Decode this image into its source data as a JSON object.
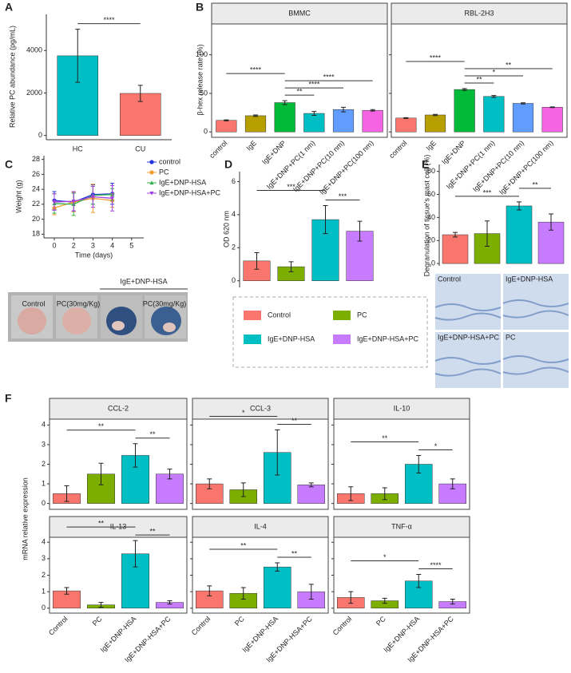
{
  "chart_data": [
    {
      "panel": "A",
      "type": "bar",
      "ylabel": "Relative PC abundance (pg/mL)",
      "categories": [
        "HC",
        "CU"
      ],
      "values": [
        3750,
        1980
      ],
      "errors": [
        1250,
        380
      ],
      "colors": [
        "#00bfc4",
        "#f8766d"
      ],
      "ylim": [
        -200,
        5700
      ],
      "yticks": [
        0,
        2000,
        4000
      ],
      "annotations": [
        {
          "from": 0,
          "to": 1,
          "label": "****"
        }
      ]
    },
    {
      "panel": "B",
      "type": "bar",
      "ylabel": "β-hex release rate (%)",
      "categories": [
        "control",
        "IgE",
        "IgE+DNP",
        "IgE+DNP+PC(1 nm)",
        "IgE+DNP+PC(10 nm)",
        "IgE+DNP+PC(100 nm)"
      ],
      "colors": [
        "#f8766d",
        "#b79f00",
        "#00ba38",
        "#00bfc4",
        "#619cff",
        "#f564e3"
      ],
      "ylim": [
        -7,
        140
      ],
      "yticks": [
        0,
        50,
        100
      ],
      "facets": [
        {
          "title": "BMMC",
          "values": [
            15,
            21,
            38,
            24,
            29,
            28
          ],
          "errors": [
            0.6,
            1,
            2.5,
            2.5,
            3,
            1
          ],
          "annotations": [
            {
              "from": 2,
              "to": 3,
              "label": "**"
            },
            {
              "from": 2,
              "to": 4,
              "label": "****"
            },
            {
              "from": 2,
              "to": 5,
              "label": "****"
            },
            {
              "from": 0,
              "to": 2,
              "label": "****"
            }
          ]
        },
        {
          "title": "RBL-2H3",
          "values": [
            18,
            22,
            55,
            46,
            37,
            32
          ],
          "errors": [
            0.5,
            0.8,
            1.2,
            1.2,
            0.8,
            0.5
          ],
          "annotations": [
            {
              "from": 2,
              "to": 3,
              "label": "**"
            },
            {
              "from": 2,
              "to": 4,
              "label": "*"
            },
            {
              "from": 2,
              "to": 5,
              "label": "**"
            },
            {
              "from": 0,
              "to": 2,
              "label": "****"
            }
          ]
        }
      ]
    },
    {
      "panel": "C",
      "type": "line",
      "xlabel": "Time (days)",
      "ylabel": "Weight (g)",
      "categories": [
        "0",
        "2",
        "3",
        "4",
        "5"
      ],
      "ylim": [
        17.5,
        28.5
      ],
      "yticks": [
        18,
        20,
        22,
        24,
        26,
        28
      ],
      "series": [
        {
          "name": "control",
          "color": "#2233dd",
          "marker": "circle",
          "values": [
            22.5,
            22.3,
            23.3,
            23.4,
            null
          ],
          "errors": [
            1.2,
            1.2,
            1.3,
            1.4,
            null
          ]
        },
        {
          "name": "PC",
          "color": "#f39c32",
          "marker": "circle",
          "values": [
            21.5,
            22.3,
            22.8,
            22.5,
            null
          ],
          "errors": [
            0.9,
            1.3,
            1.9,
            0.9,
            null
          ]
        },
        {
          "name": "IgE+DNP-HSA",
          "color": "#33b24a",
          "marker": "triangle",
          "values": [
            22.1,
            22.0,
            23.2,
            23.3,
            null
          ],
          "errors": [
            1.3,
            1.5,
            1.2,
            0.8,
            null
          ]
        },
        {
          "name": "IgE+DNP-HSA+PC",
          "color": "#a040e0",
          "marker": "triangle-down",
          "values": [
            22.3,
            22.4,
            23.0,
            22.8,
            null
          ],
          "errors": [
            1.1,
            1.3,
            1.4,
            1.7,
            null
          ]
        }
      ],
      "image_labels": {
        "group": "IgE+DNP-HSA",
        "items": [
          "Control",
          "PC(30mg/Kg)",
          "PC(30mg/Kg)"
        ]
      }
    },
    {
      "panel": "D",
      "type": "bar",
      "ylabel": "OD 620 nm",
      "categories": [
        "Control",
        "PC",
        "IgE+DNP-HSA",
        "IgE+DNP-HSA+PC"
      ],
      "values": [
        1.2,
        0.85,
        3.7,
        3.0
      ],
      "errors": [
        0.5,
        0.3,
        0.85,
        0.6
      ],
      "colors": [
        "#f8766d",
        "#7cae00",
        "#00bfc4",
        "#c77cff"
      ],
      "ylim": [
        -0.4,
        6.6
      ],
      "yticks": [
        0,
        2,
        4,
        6
      ],
      "legend": "bottom",
      "annotations": [
        {
          "from": 2,
          "to": 3,
          "label": "***"
        },
        {
          "from": 0,
          "to": 2,
          "label": "***"
        }
      ]
    },
    {
      "panel": "E",
      "type": "bar",
      "ylabel": "Degranulation of tissue's mast cell (%)",
      "values": [
        25,
        26,
        50,
        36
      ],
      "errors": [
        2,
        11,
        3.5,
        7
      ],
      "colors": [
        "#f8766d",
        "#7cae00",
        "#00bfc4",
        "#c77cff"
      ],
      "ylim": [
        -2,
        86
      ],
      "yticks": [
        0,
        20,
        40,
        60,
        80
      ],
      "annotations": [
        {
          "from": 0,
          "to": 2,
          "label": "***"
        },
        {
          "from": 2,
          "to": 3,
          "label": "**"
        }
      ],
      "image_labels": [
        "Control",
        "IgE+DNP-HSA",
        "IgE+DNP-HSA+PC",
        "PC"
      ]
    },
    {
      "panel": "F",
      "type": "bar",
      "ylabel": "mRNA relative expression",
      "categories": [
        "Control",
        "PC",
        "IgE+DNP-HSA",
        "IgE+DNP-HSA+PC"
      ],
      "colors": [
        "#f8766d",
        "#7cae00",
        "#00bfc4",
        "#c77cff"
      ],
      "ylim": [
        -0.3,
        4.3
      ],
      "yticks": [
        0,
        1,
        2,
        3,
        4
      ],
      "facets": [
        {
          "title": "CCL-2",
          "values": [
            0.5,
            1.5,
            2.45,
            1.5
          ],
          "errors": [
            0.4,
            0.55,
            0.6,
            0.25
          ],
          "annotations": [
            {
              "from": 2,
              "to": 3,
              "label": "**"
            },
            {
              "from": 0,
              "to": 2,
              "label": "**"
            }
          ]
        },
        {
          "title": "CCL-3",
          "values": [
            1.0,
            0.7,
            2.6,
            0.95
          ],
          "errors": [
            0.25,
            0.35,
            1.15,
            0.1
          ],
          "annotations": [
            {
              "from": 2,
              "to": 3,
              "label": "**"
            },
            {
              "from": 0,
              "to": 2,
              "label": "*"
            }
          ]
        },
        {
          "title": "IL-10",
          "values": [
            0.5,
            0.5,
            2.0,
            1.0
          ],
          "errors": [
            0.35,
            0.3,
            0.45,
            0.25
          ],
          "annotations": [
            {
              "from": 2,
              "to": 3,
              "label": "*"
            },
            {
              "from": 0,
              "to": 2,
              "label": "**"
            }
          ]
        },
        {
          "title": "IL-13",
          "values": [
            1.05,
            0.2,
            3.3,
            0.35
          ],
          "errors": [
            0.2,
            0.15,
            0.8,
            0.1
          ],
          "annotations": [
            {
              "from": 2,
              "to": 3,
              "label": "**"
            },
            {
              "from": 0,
              "to": 2,
              "label": "**"
            }
          ]
        },
        {
          "title": "IL-4",
          "values": [
            1.05,
            0.9,
            2.5,
            1.0
          ],
          "errors": [
            0.3,
            0.35,
            0.25,
            0.45
          ],
          "annotations": [
            {
              "from": 2,
              "to": 3,
              "label": "**"
            },
            {
              "from": 0,
              "to": 2,
              "label": "**"
            }
          ]
        },
        {
          "title": "TNF-α",
          "values": [
            0.65,
            0.45,
            1.65,
            0.4
          ],
          "errors": [
            0.35,
            0.15,
            0.4,
            0.15
          ],
          "annotations": [
            {
              "from": 2,
              "to": 3,
              "label": "****"
            },
            {
              "from": 0,
              "to": 2,
              "label": "*"
            }
          ]
        }
      ]
    }
  ]
}
